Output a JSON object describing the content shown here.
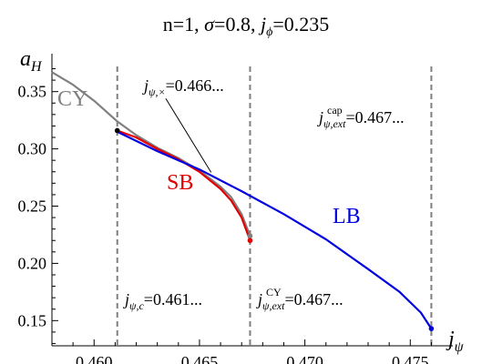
{
  "chart_data": {
    "type": "line",
    "title": "n=1, σ=0.8, j_ϕ=0.235",
    "xlabel": "j_ψ",
    "ylabel": "a_H",
    "xlim": [
      0.458,
      0.4765
    ],
    "ylim": [
      0.128,
      0.372
    ],
    "xticks": [
      0.46,
      0.465,
      0.47,
      0.475
    ],
    "xtick_labels": [
      "0.460",
      "0.465",
      "0.470",
      "0.475"
    ],
    "yticks": [
      0.15,
      0.2,
      0.25,
      0.3,
      0.35
    ],
    "ytick_labels": [
      "0.15",
      "0.20",
      "0.25",
      "0.30",
      "0.35"
    ],
    "vlines": [
      0.4611,
      0.4674,
      0.476
    ],
    "series": [
      {
        "name": "CY",
        "color": "#808080",
        "x": [
          0.458,
          0.459,
          0.46,
          0.4611,
          0.462,
          0.463,
          0.464,
          0.465,
          0.466,
          0.4665,
          0.467,
          0.4674
        ],
        "y": [
          0.367,
          0.356,
          0.342,
          0.324,
          0.312,
          0.301,
          0.292,
          0.281,
          0.267,
          0.258,
          0.243,
          0.224
        ]
      },
      {
        "name": "SB",
        "color": "#e30000",
        "x": [
          0.4611,
          0.462,
          0.463,
          0.464,
          0.465,
          0.466,
          0.4665,
          0.467,
          0.4674
        ],
        "y": [
          0.316,
          0.31,
          0.3,
          0.291,
          0.28,
          0.265,
          0.255,
          0.24,
          0.22
        ]
      },
      {
        "name": "LB",
        "color": "#0000e0",
        "x": [
          0.4611,
          0.463,
          0.465,
          0.467,
          0.469,
          0.471,
          0.473,
          0.4745,
          0.4755,
          0.476
        ],
        "y": [
          0.315,
          0.298,
          0.282,
          0.263,
          0.243,
          0.221,
          0.195,
          0.175,
          0.157,
          0.143
        ]
      }
    ],
    "points": [
      {
        "x": 0.4611,
        "y": 0.316,
        "color": "#000000"
      },
      {
        "x": 0.4674,
        "y": 0.224,
        "color": "#808080"
      },
      {
        "x": 0.4674,
        "y": 0.22,
        "color": "#e30000"
      },
      {
        "x": 0.476,
        "y": 0.143,
        "color": "#0000e0"
      }
    ],
    "annotations": [
      {
        "id": "jpsi_c",
        "sym": "j",
        "sub": "ψ,c",
        "value": "=0.461..."
      },
      {
        "id": "jpsi_ext_cy",
        "sym": "j",
        "sub": "ψ,ext",
        "sup": "CY",
        "value": "=0.467..."
      },
      {
        "id": "jpsi_ext_cap",
        "sym": "j",
        "sub": "ψ,ext",
        "sup": "cap",
        "value": "=0.467..."
      },
      {
        "id": "jpsi_cross",
        "sym": "j",
        "sub": "ψ,×",
        "value": "=0.466..."
      }
    ]
  }
}
